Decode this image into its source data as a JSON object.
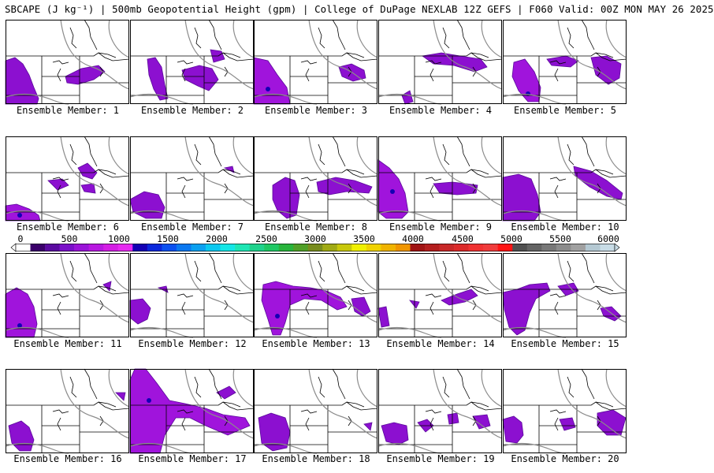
{
  "header": {
    "title": "SBCAPE (J kg⁻¹) | 500mb Geopotential Height (gpm) | College of DuPage NEXLAB 12Z GEFS | F060 Valid: 00Z MON MAY 26 2025"
  },
  "colorbar": {
    "ticks": [
      "0",
      "500",
      "1000",
      "1500",
      "2000",
      "2500",
      "3000",
      "3500",
      "4000",
      "4500",
      "5000",
      "5500",
      "6000"
    ],
    "colors": [
      "#ffffff",
      "#3a006a",
      "#5a0aa0",
      "#7a10c8",
      "#9a14d8",
      "#b818e0",
      "#d41ee4",
      "#e62af0",
      "#1400b4",
      "#0a28dc",
      "#0a50f0",
      "#0a78f0",
      "#0aa0f0",
      "#0ac8f0",
      "#14e6e6",
      "#1ee6b4",
      "#1ed28c",
      "#1ec864",
      "#28b43c",
      "#50a028",
      "#788c1e",
      "#a0aa14",
      "#c8c80a",
      "#f0f000",
      "#f0d200",
      "#f0b400",
      "#f09600",
      "#a01414",
      "#b41e1e",
      "#c82828",
      "#dc2a2a",
      "#f03232",
      "#f03c3c",
      "#ff1414",
      "#505050",
      "#646464",
      "#787878",
      "#8c8c8c",
      "#a0a0a0",
      "#b4c8d2",
      "#c8dce6"
    ]
  },
  "members": [
    {
      "label": "Ensemble Member: 1"
    },
    {
      "label": "Ensemble Member: 2"
    },
    {
      "label": "Ensemble Member: 3"
    },
    {
      "label": "Ensemble Member: 4"
    },
    {
      "label": "Ensemble Member: 5"
    },
    {
      "label": "Ensemble Member: 6"
    },
    {
      "label": "Ensemble Member: 7"
    },
    {
      "label": "Ensemble Member: 8"
    },
    {
      "label": "Ensemble Member: 9"
    },
    {
      "label": "Ensemble Member: 10"
    },
    {
      "label": "Ensemble Member: 11"
    },
    {
      "label": "Ensemble Member: 12"
    },
    {
      "label": "Ensemble Member: 13"
    },
    {
      "label": "Ensemble Member: 14"
    },
    {
      "label": "Ensemble Member: 15"
    },
    {
      "label": "Ensemble Member: 16"
    },
    {
      "label": "Ensemble Member: 17"
    },
    {
      "label": "Ensemble Member: 18"
    },
    {
      "label": "Ensemble Member: 19"
    },
    {
      "label": "Ensemble Member: 20"
    }
  ]
}
